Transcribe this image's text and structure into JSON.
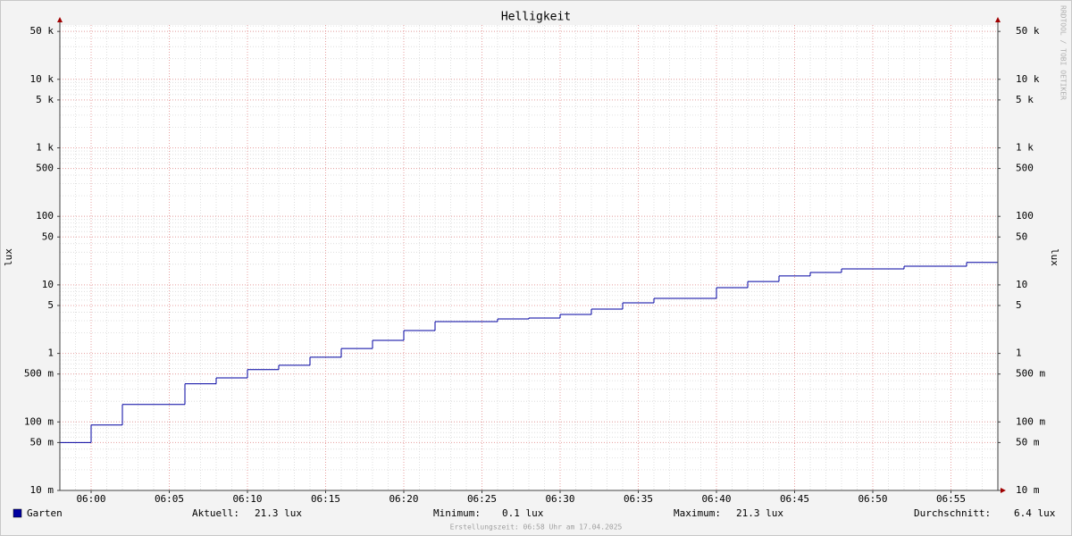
{
  "chart_data": {
    "type": "step",
    "title": "Helligkeit",
    "y_label": "lux",
    "watermark": "RRDTOOL / TOBI OETIKER",
    "footer": "Erstellungszeit: 06:58 Uhr am 17.04.2025",
    "log_scale": true,
    "grid": true,
    "x": [
      "05:58",
      "06:00",
      "06:02",
      "06:04",
      "06:06",
      "06:08",
      "06:10",
      "06:12",
      "06:14",
      "06:16",
      "06:18",
      "06:20",
      "06:22",
      "06:24",
      "06:26",
      "06:28",
      "06:30",
      "06:32",
      "06:34",
      "06:36",
      "06:38",
      "06:40",
      "06:42",
      "06:44",
      "06:46",
      "06:48",
      "06:50",
      "06:52",
      "06:54",
      "06:56"
    ],
    "xlim": [
      "05:58",
      "06:58"
    ],
    "xticks": [
      "06:00",
      "06:05",
      "06:10",
      "06:15",
      "06:20",
      "06:25",
      "06:30",
      "06:35",
      "06:40",
      "06:45",
      "06:50",
      "06:55"
    ],
    "series": [
      {
        "name": "Garten",
        "color": "#0000a0",
        "values": [
          0.05,
          0.09,
          0.18,
          0.18,
          0.36,
          0.44,
          0.58,
          0.67,
          0.88,
          1.18,
          1.55,
          2.16,
          2.91,
          2.91,
          3.18,
          3.28,
          3.7,
          4.43,
          5.47,
          6.35,
          6.35,
          9.1,
          11.2,
          13.5,
          15.2,
          17.1,
          17.1,
          18.7,
          18.7,
          21.3
        ]
      }
    ],
    "ylim": [
      0.01,
      62000
    ],
    "yticks": [
      {
        "value": 0.01,
        "label": "10 m"
      },
      {
        "value": 0.05,
        "label": "50 m"
      },
      {
        "value": 0.1,
        "label": "100 m"
      },
      {
        "value": 0.5,
        "label": "500 m"
      },
      1,
      5,
      10,
      50,
      100,
      500,
      {
        "value": 1000,
        "label": "1 k"
      },
      {
        "value": 5000,
        "label": "5 k"
      },
      {
        "value": 10000,
        "label": "10 k"
      },
      {
        "value": 50000,
        "label": "50 k"
      }
    ],
    "stats": [
      {
        "label": "Aktuell:",
        "value": "21.3 lux"
      },
      {
        "label": "Minimum:",
        "value": "0.1 lux"
      },
      {
        "label": "Maximum:",
        "value": "21.3 lux"
      },
      {
        "label": "Durchschnitt:",
        "value": "6.4 lux"
      }
    ]
  }
}
